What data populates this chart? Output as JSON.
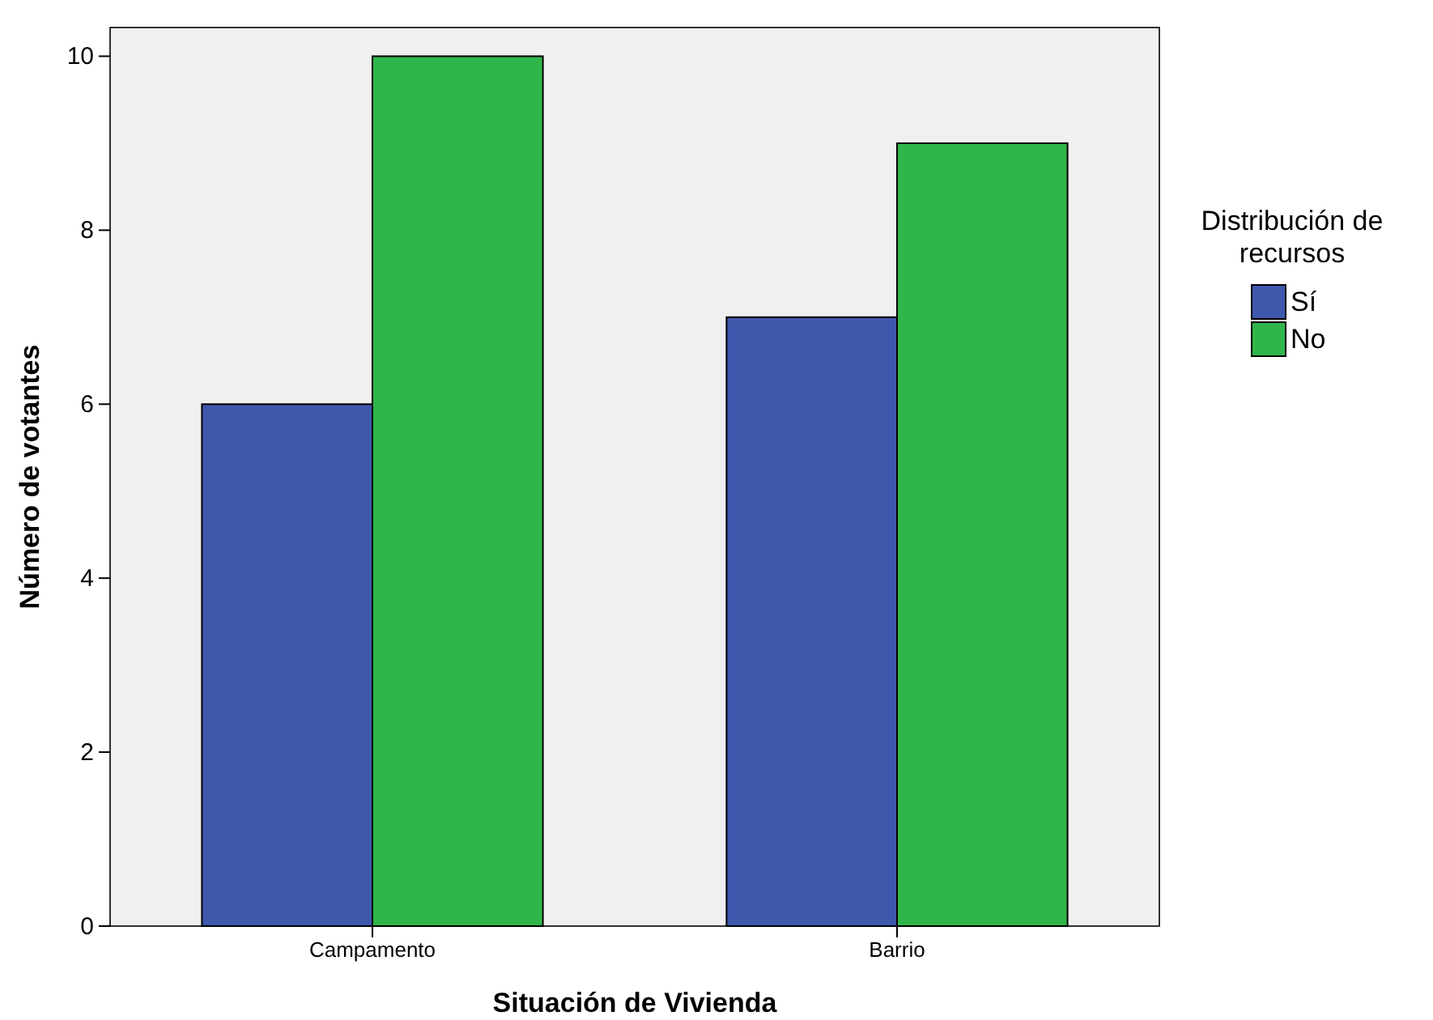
{
  "chart_data": {
    "type": "bar",
    "xlabel": "Situación de Vivienda",
    "ylabel": "Número de votantes",
    "legend_title": "Distribución de recursos",
    "categories": [
      "Campamento",
      "Barrio"
    ],
    "series": [
      {
        "name": "Sí",
        "color": "#3e58ac",
        "values": [
          6,
          7
        ]
      },
      {
        "name": "No",
        "color": "#2fb64a",
        "values": [
          10,
          9
        ]
      }
    ],
    "ylim": [
      0,
      10.33
    ],
    "yticks": [
      0,
      2,
      4,
      6,
      8,
      10
    ],
    "grid": false,
    "legend": "right"
  }
}
